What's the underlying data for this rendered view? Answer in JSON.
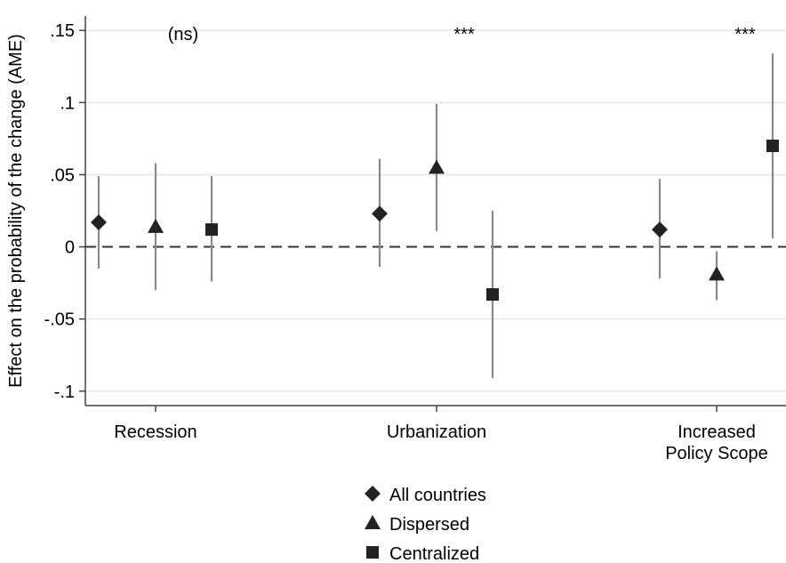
{
  "chart_data": {
    "type": "scatter",
    "ylabel": "Effect on the probability of the change (AME)",
    "ylim": [
      -0.11,
      0.16
    ],
    "yticks": [
      -0.1,
      -0.05,
      0,
      0.05,
      0.1,
      0.15
    ],
    "ytick_labels": [
      "-.1",
      "-.05",
      "0",
      ".05",
      ".1",
      ".15"
    ],
    "grid": true,
    "legend_position": "bottom-center",
    "categories": [
      {
        "label": [
          "Recession"
        ],
        "annotation": "(ns)"
      },
      {
        "label": [
          "Urbanization"
        ],
        "annotation": "***"
      },
      {
        "label": [
          "Increased",
          "Policy Scope"
        ],
        "annotation": "***"
      }
    ],
    "series": [
      {
        "name": "All countries",
        "marker": "diamond",
        "values": [
          0.017,
          0.023,
          0.012
        ],
        "ci_low": [
          -0.015,
          -0.014,
          -0.022
        ],
        "ci_high": [
          0.049,
          0.061,
          0.047
        ]
      },
      {
        "name": "Dispersed",
        "marker": "triangle",
        "values": [
          0.014,
          0.055,
          -0.019
        ],
        "ci_low": [
          -0.03,
          0.011,
          -0.037
        ],
        "ci_high": [
          0.058,
          0.099,
          -0.003
        ]
      },
      {
        "name": "Centralized",
        "marker": "square",
        "values": [
          0.012,
          -0.033,
          0.07
        ],
        "ci_low": [
          -0.024,
          -0.091,
          0.006
        ],
        "ci_high": [
          0.049,
          0.025,
          0.134
        ]
      }
    ],
    "colors": {
      "markers": "#222222",
      "ci_lines": "#8a8a8a",
      "grid": "#e6e6e6",
      "axis": "#444444",
      "zero_line": "#333333"
    }
  }
}
